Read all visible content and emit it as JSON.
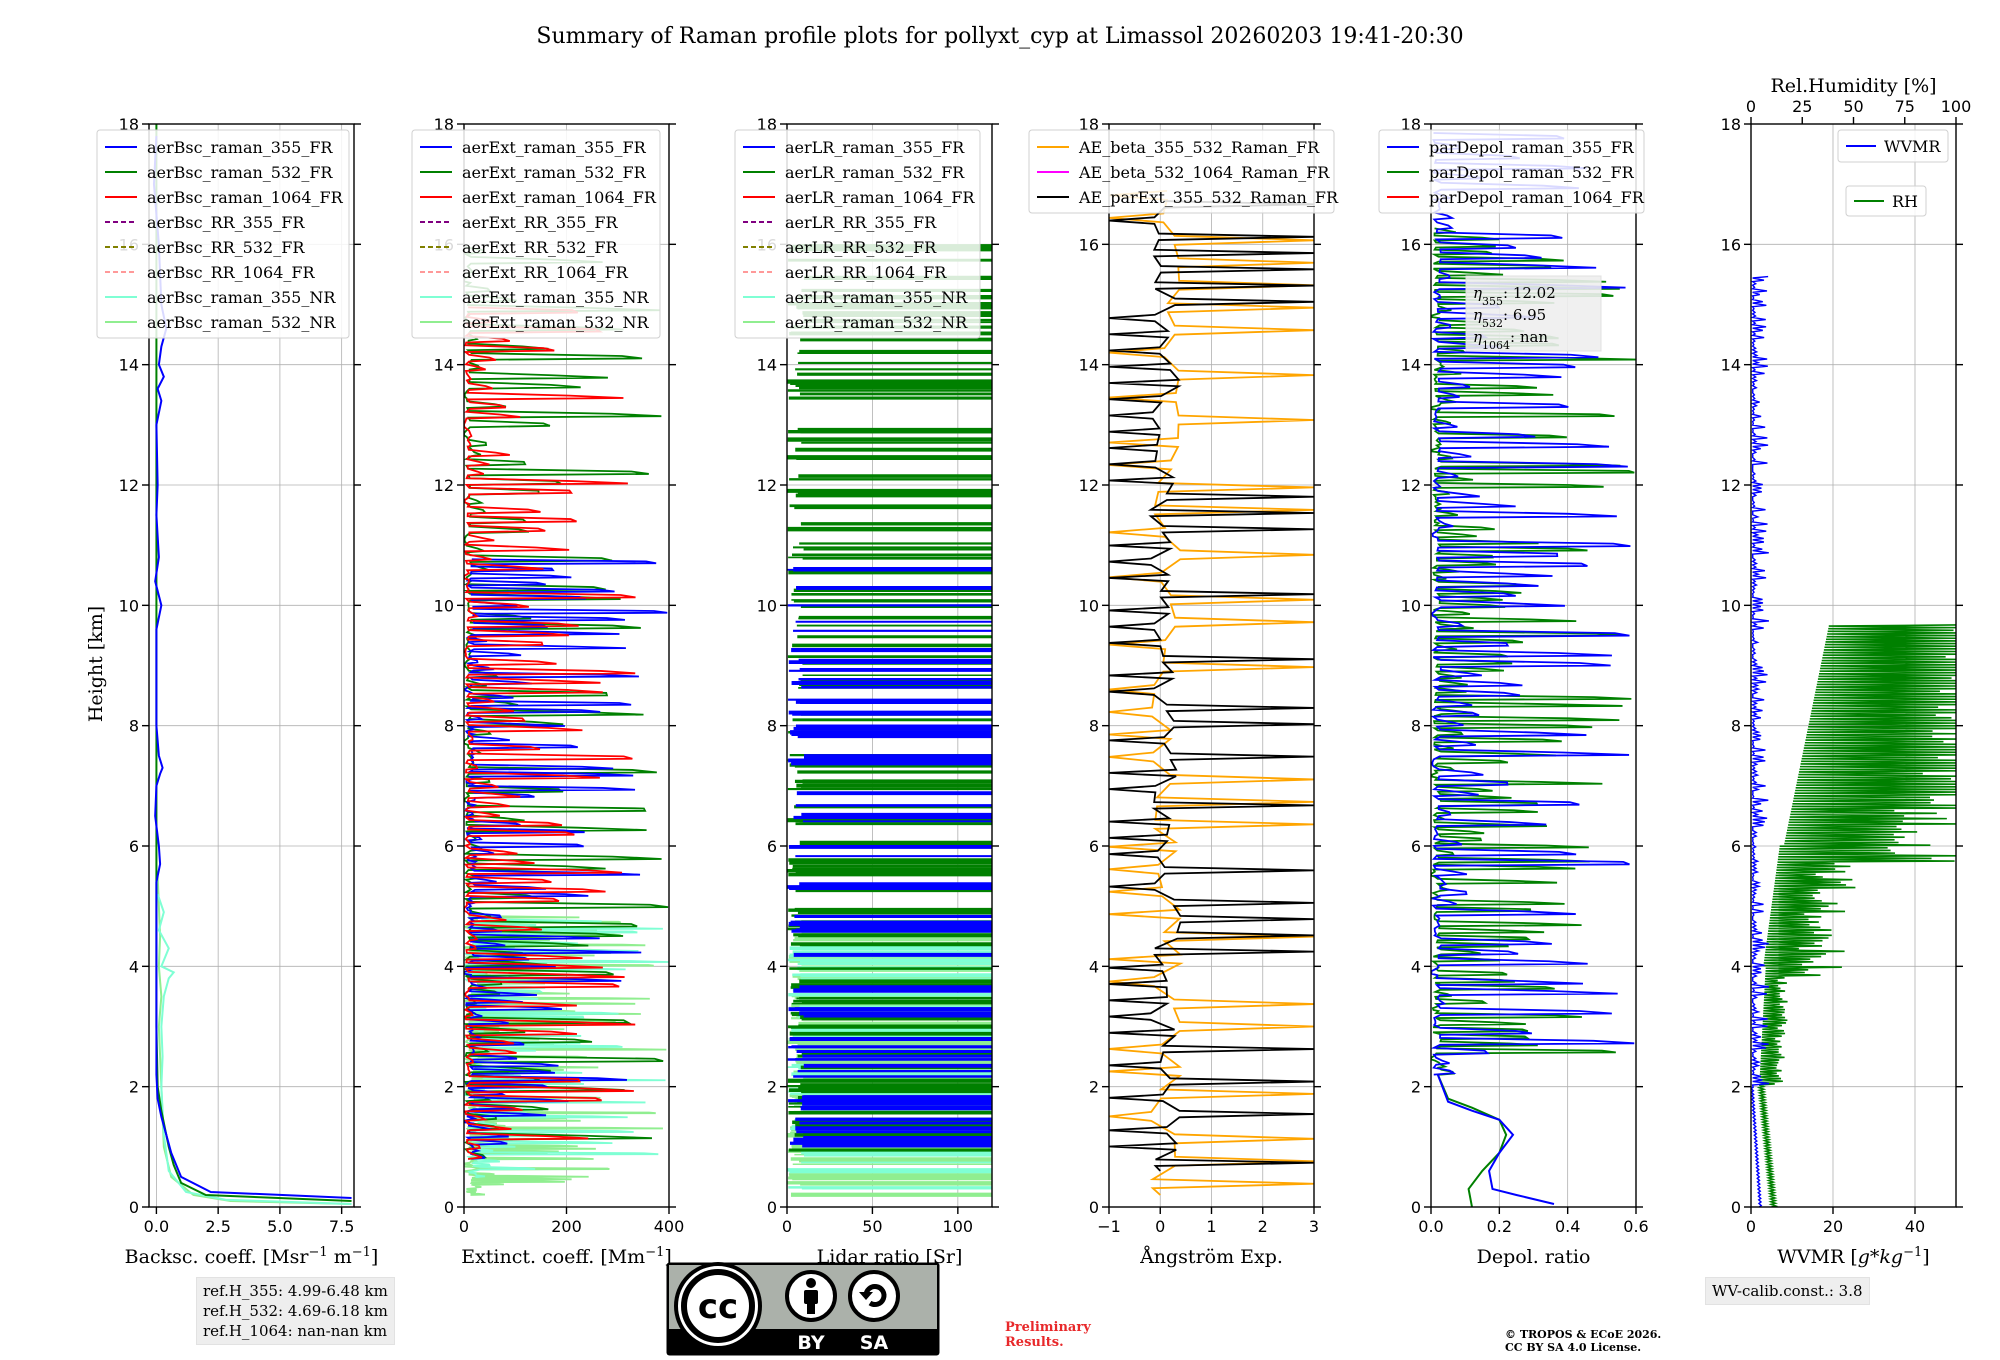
{
  "figure": {
    "title": "Summary of Raman profile plots for pollyxt_cyp at Limassol 20260203 19:41-20:30",
    "ylabel": "Height [km]",
    "info": {
      "ref_lines": [
        "ref.H_355: 4.99-6.48 km",
        "ref.H_532: 4.69-6.18 km",
        "ref.H_1064: nan-nan km"
      ],
      "preliminary": [
        "Preliminary",
        "Results."
      ],
      "copyright": [
        "© TROPOS & ECoE 2026.",
        "CC BY SA 4.0 License."
      ],
      "wv_calib": "WV-calib.const.: 3.8"
    },
    "badge": {
      "left": "BY",
      "right": "SA",
      "logo": "cc-icon",
      "person": "person-icon",
      "sa": "share-alike-icon"
    }
  },
  "chart_data": [
    {
      "id": "bsc",
      "type": "line",
      "xlabel": "Backsc. coeff. [Msr$^{-1}$ m$^{-1}$]",
      "xlabel_display": [
        "Backsc. coeff. [Msr",
        "−1",
        " m",
        "−1",
        "]"
      ],
      "xlim": [
        -0.3,
        8.0
      ],
      "ylim": [
        0,
        18
      ],
      "xticks": [
        0.0,
        2.5,
        5.0,
        7.5
      ],
      "xticklabels": [
        "0.0",
        "2.5",
        "5.0",
        "7.5"
      ],
      "yticks": [
        0,
        2,
        4,
        6,
        8,
        10,
        12,
        14,
        16,
        18
      ],
      "legend": [
        {
          "label": "aerBsc_raman_355_FR",
          "color": "#0000ff",
          "dash": false
        },
        {
          "label": "aerBsc_raman_532_FR",
          "color": "#008000",
          "dash": false
        },
        {
          "label": "aerBsc_raman_1064_FR",
          "color": "#ff0000",
          "dash": false
        },
        {
          "label": "aerBsc_RR_355_FR",
          "color": "#800080",
          "dash": true
        },
        {
          "label": "aerBsc_RR_532_FR",
          "color": "#808000",
          "dash": true
        },
        {
          "label": "aerBsc_RR_1064_FR",
          "color": "#ff9999",
          "dash": true
        },
        {
          "label": "aerBsc_raman_355_NR",
          "color": "#7fffd4",
          "dash": false
        },
        {
          "label": "aerBsc_raman_532_NR",
          "color": "#90ee90",
          "dash": false
        }
      ],
      "series": [
        {
          "name": "aerBsc_raman_532_NR",
          "color": "#90ee90",
          "mode": "line",
          "points": [
            [
              7.9,
              0.05
            ],
            [
              3.0,
              0.1
            ],
            [
              1.5,
              0.2
            ],
            [
              0.6,
              0.5
            ],
            [
              0.3,
              1.0
            ],
            [
              0.25,
              1.5
            ],
            [
              0.2,
              2.0
            ],
            [
              0.15,
              2.5
            ],
            [
              0.1,
              3.0
            ],
            [
              0.2,
              3.5
            ],
            [
              0.1,
              4.0
            ],
            [
              0.15,
              4.5
            ],
            [
              0.1,
              5.0
            ],
            [
              0.05,
              5.5
            ]
          ]
        },
        {
          "name": "aerBsc_raman_355_NR",
          "color": "#7fffd4",
          "mode": "line",
          "points": [
            [
              7.9,
              0.05
            ],
            [
              2.8,
              0.12
            ],
            [
              1.2,
              0.25
            ],
            [
              0.5,
              0.6
            ],
            [
              0.3,
              1.2
            ],
            [
              0.2,
              2.0
            ],
            [
              0.25,
              2.5
            ],
            [
              0.2,
              3.0
            ],
            [
              0.3,
              3.5
            ],
            [
              0.5,
              3.8
            ],
            [
              0.7,
              3.9
            ],
            [
              0.2,
              4.0
            ],
            [
              0.5,
              4.3
            ],
            [
              0.1,
              4.6
            ],
            [
              0.3,
              4.9
            ],
            [
              0.05,
              5.2
            ]
          ]
        },
        {
          "name": "aerBsc_raman_532_FR",
          "color": "#008000",
          "mode": "line",
          "points": [
            [
              7.9,
              0.1
            ],
            [
              2.0,
              0.2
            ],
            [
              1.0,
              0.4
            ],
            [
              0.7,
              0.7
            ],
            [
              0.5,
              1.0
            ],
            [
              0.35,
              1.3
            ],
            [
              0.2,
              1.6
            ],
            [
              0.05,
              2.0
            ],
            [
              0.0,
              3.0
            ],
            [
              0.0,
              6.0
            ],
            [
              0.0,
              18.0
            ]
          ]
        },
        {
          "name": "aerBsc_raman_355_FR",
          "color": "#0000ff",
          "mode": "line",
          "points": [
            [
              7.9,
              0.15
            ],
            [
              2.2,
              0.25
            ],
            [
              1.0,
              0.5
            ],
            [
              0.6,
              0.9
            ],
            [
              0.4,
              1.2
            ],
            [
              0.2,
              1.5
            ],
            [
              0.05,
              1.8
            ],
            [
              0.0,
              2.2
            ],
            [
              0.0,
              5.4
            ],
            [
              0.15,
              5.7
            ],
            [
              0.1,
              6.0
            ],
            [
              -0.05,
              6.5
            ],
            [
              0.0,
              7.0
            ],
            [
              0.15,
              7.2
            ],
            [
              0.25,
              7.3
            ],
            [
              0.1,
              7.5
            ],
            [
              0.0,
              8.0
            ],
            [
              0.0,
              9.6
            ],
            [
              0.2,
              10.0
            ],
            [
              -0.05,
              10.4
            ],
            [
              0.1,
              10.8
            ],
            [
              0.0,
              11.5
            ],
            [
              0.05,
              12.0
            ],
            [
              0.0,
              13.0
            ],
            [
              0.2,
              13.4
            ],
            [
              0.05,
              13.6
            ],
            [
              0.3,
              13.8
            ],
            [
              0.1,
              14.0
            ],
            [
              0.2,
              14.3
            ],
            [
              0.4,
              14.6
            ],
            [
              0.2,
              15.0
            ],
            [
              0.1,
              16.0
            ],
            [
              -0.1,
              17.0
            ],
            [
              0.0,
              17.8
            ]
          ]
        }
      ]
    },
    {
      "id": "ext",
      "type": "line",
      "xlabel": "Extinct. coeff. [Mm$^{-1}$]",
      "xlabel_display": [
        "Extinct. coeff. [Mm",
        "−1",
        "]"
      ],
      "xlim": [
        0,
        400
      ],
      "ylim": [
        0,
        18
      ],
      "xticks": [
        0,
        200,
        400
      ],
      "xticklabels": [
        "0",
        "200",
        "400"
      ],
      "yticks": [
        0,
        2,
        4,
        6,
        8,
        10,
        12,
        14,
        16,
        18
      ],
      "legend": [
        {
          "label": "aerExt_raman_355_FR",
          "color": "#0000ff",
          "dash": false
        },
        {
          "label": "aerExt_raman_532_FR",
          "color": "#008000",
          "dash": false
        },
        {
          "label": "aerExt_raman_1064_FR",
          "color": "#ff0000",
          "dash": false
        },
        {
          "label": "aerExt_RR_355_FR",
          "color": "#800080",
          "dash": true
        },
        {
          "label": "aerExt_RR_532_FR",
          "color": "#808000",
          "dash": true
        },
        {
          "label": "aerExt_RR_1064_FR",
          "color": "#ff9999",
          "dash": true
        },
        {
          "label": "aerExt_raman_355_NR",
          "color": "#7fffd4",
          "dash": false
        },
        {
          "label": "aerExt_raman_532_NR",
          "color": "#90ee90",
          "dash": false
        }
      ],
      "series": [
        {
          "name": "aerExt_raman_532_NR",
          "color": "#90ee90",
          "mode": "spikes",
          "seed": 11,
          "ymin": 0.2,
          "ymax": 4.85,
          "n": 110,
          "xmin": 0,
          "xmax": 400,
          "base": 20
        },
        {
          "name": "aerExt_raman_355_NR",
          "color": "#7fffd4",
          "mode": "spikes",
          "seed": 12,
          "ymin": 0.5,
          "ymax": 4.8,
          "n": 70,
          "xmin": 0,
          "xmax": 400,
          "base": 30
        },
        {
          "name": "aerExt_raman_532_FR",
          "color": "#008000",
          "mode": "spikes",
          "seed": 13,
          "ymin": 0.8,
          "ymax": 16.0,
          "n": 95,
          "xmin": 0,
          "xmax": 400,
          "base": 10
        },
        {
          "name": "aerExt_raman_355_FR",
          "color": "#0000ff",
          "mode": "spikes",
          "seed": 14,
          "ymin": 0.8,
          "ymax": 10.8,
          "n": 85,
          "xmin": 0,
          "xmax": 400,
          "base": 15
        },
        {
          "name": "aerExt_raman_1064_FR",
          "color": "#ff0000",
          "mode": "spikes",
          "seed": 15,
          "ymin": 0.8,
          "ymax": 15.0,
          "n": 90,
          "xmin": 0,
          "xmax": 340,
          "base": 8
        }
      ]
    },
    {
      "id": "lr",
      "type": "line",
      "xlabel": "Lidar ratio [Sr]",
      "xlabel_display": [
        "Lidar ratio [Sr]"
      ],
      "xlim": [
        0,
        120
      ],
      "ylim": [
        0,
        18
      ],
      "xticks": [
        0,
        50,
        100
      ],
      "xticklabels": [
        "0",
        "50",
        "100"
      ],
      "yticks": [
        0,
        2,
        4,
        6,
        8,
        10,
        12,
        14,
        16,
        18
      ],
      "legend": [
        {
          "label": "aerLR_raman_355_FR",
          "color": "#0000ff",
          "dash": false
        },
        {
          "label": "aerLR_raman_532_FR",
          "color": "#008000",
          "dash": false
        },
        {
          "label": "aerLR_raman_1064_FR",
          "color": "#ff0000",
          "dash": false
        },
        {
          "label": "aerLR_RR_355_FR",
          "color": "#800080",
          "dash": true
        },
        {
          "label": "aerLR_RR_532_FR",
          "color": "#808000",
          "dash": true
        },
        {
          "label": "aerLR_RR_1064_FR",
          "color": "#ff9999",
          "dash": true
        },
        {
          "label": "aerLR_raman_355_NR",
          "color": "#7fffd4",
          "dash": false
        },
        {
          "label": "aerLR_raman_532_NR",
          "color": "#90ee90",
          "dash": false
        }
      ],
      "series": [
        {
          "name": "aerLR_raman_532_NR",
          "color": "#90ee90",
          "mode": "bars",
          "seed": 21,
          "ymin": 0.2,
          "ymax": 4.8,
          "n": 90,
          "xmin": 0,
          "xmax": 120
        },
        {
          "name": "aerLR_raman_355_NR",
          "color": "#7fffd4",
          "mode": "bars",
          "seed": 22,
          "ymin": 0.3,
          "ymax": 4.5,
          "n": 40,
          "xmin": 0,
          "xmax": 120
        },
        {
          "name": "aerLR_raman_532_FR",
          "color": "#008000",
          "mode": "bars",
          "seed": 23,
          "ymin": 0.8,
          "ymax": 16.0,
          "n": 170,
          "xmin": 0,
          "xmax": 120
        },
        {
          "name": "aerLR_raman_355_FR",
          "color": "#0000ff",
          "mode": "bars",
          "seed": 24,
          "ymin": 0.8,
          "ymax": 11.0,
          "n": 80,
          "xmin": 0,
          "xmax": 120
        }
      ]
    },
    {
      "id": "ae",
      "type": "line",
      "xlabel": "Ångström Exp.",
      "xlabel_display": [
        "Ångström Exp."
      ],
      "xlim": [
        -1,
        3
      ],
      "ylim": [
        0,
        18
      ],
      "xticks": [
        -1,
        0,
        1,
        2,
        3
      ],
      "xticklabels": [
        "−1",
        "0",
        "1",
        "2",
        "3"
      ],
      "yticks": [
        0,
        2,
        4,
        6,
        8,
        10,
        12,
        14,
        16,
        18
      ],
      "legend": [
        {
          "label": "AE_beta_355_532_Raman_FR",
          "color": "#ffa500",
          "dash": false
        },
        {
          "label": "AE_beta_532_1064_Raman_FR",
          "color": "#ff00ff",
          "dash": false
        },
        {
          "label": "AE_parExt_355_532_Raman_FR",
          "color": "#000000",
          "dash": false
        }
      ],
      "series": [
        {
          "name": "AE_beta_355_532_Raman_FR",
          "color": "#ffa500",
          "mode": "osc",
          "seed": 31,
          "ymin": 0.2,
          "ymax": 17.0,
          "n": 45,
          "xmin": -1,
          "xmax": 3
        },
        {
          "name": "AE_parExt_355_532_Raman_FR",
          "color": "#000000",
          "mode": "osc",
          "seed": 32,
          "ymin": 0.6,
          "ymax": 16.8,
          "n": 60,
          "xmin": -1,
          "xmax": 3
        }
      ]
    },
    {
      "id": "depol",
      "type": "line",
      "xlabel": "Depol. ratio",
      "xlabel_display": [
        "Depol. ratio"
      ],
      "xlim": [
        0,
        0.6
      ],
      "ylim": [
        0,
        18
      ],
      "xticks": [
        0.0,
        0.2,
        0.4,
        0.6
      ],
      "xticklabels": [
        "0.0",
        "0.2",
        "0.4",
        "0.6"
      ],
      "yticks": [
        0,
        2,
        4,
        6,
        8,
        10,
        12,
        14,
        16,
        18
      ],
      "legend": [
        {
          "label": "parDepol_raman_355_FR",
          "color": "#0000ff",
          "dash": false
        },
        {
          "label": "parDepol_raman_532_FR",
          "color": "#008000",
          "dash": false
        },
        {
          "label": "parDepol_raman_1064_FR",
          "color": "#ff0000",
          "dash": false
        }
      ],
      "annotation": {
        "lines": [
          {
            "sym": "η",
            "sub": "355",
            "val": ": 12.02"
          },
          {
            "sym": "η",
            "sub": "532",
            "val": ": 6.95"
          },
          {
            "sym": "η",
            "sub": "1064",
            "val": ": nan"
          }
        ]
      },
      "series": [
        {
          "name": "parDepol_raman_532_FR",
          "color": "#008000",
          "mode": "spikes",
          "seed": 41,
          "ymin": 2.2,
          "ymax": 16.3,
          "n": 120,
          "xmin": 0,
          "xmax": 0.6,
          "base": 0.02
        },
        {
          "name": "parDepol_raman_355_FR",
          "color": "#0000ff",
          "mode": "spikes",
          "seed": 42,
          "ymin": 2.2,
          "ymax": 17.9,
          "n": 95,
          "xmin": 0,
          "xmax": 0.6,
          "base": 0.02
        },
        {
          "name": "parDepol_532_low",
          "color": "#008000",
          "mode": "line",
          "points": [
            [
              0.12,
              0.0
            ],
            [
              0.11,
              0.3
            ],
            [
              0.15,
              0.6
            ],
            [
              0.2,
              0.9
            ],
            [
              0.22,
              1.2
            ],
            [
              0.2,
              1.45
            ],
            [
              0.12,
              1.65
            ],
            [
              0.05,
              1.8
            ],
            [
              0.02,
              2.2
            ]
          ]
        },
        {
          "name": "parDepol_355_low",
          "color": "#0000ff",
          "mode": "line",
          "points": [
            [
              0.36,
              0.05
            ],
            [
              0.25,
              0.2
            ],
            [
              0.18,
              0.3
            ],
            [
              0.17,
              0.6
            ],
            [
              0.2,
              0.9
            ],
            [
              0.24,
              1.2
            ],
            [
              0.2,
              1.45
            ],
            [
              0.12,
              1.6
            ],
            [
              0.05,
              1.75
            ],
            [
              0.02,
              2.2
            ]
          ]
        }
      ]
    },
    {
      "id": "wv",
      "type": "line",
      "xlabel": "WVMR [$g*kg^{-1}$]",
      "xlabel_display": [
        "WVMR [",
        "g",
        "*",
        "kg",
        "−1",
        "]"
      ],
      "xlim": [
        0,
        50
      ],
      "ylim": [
        0,
        18
      ],
      "xticks": [
        0,
        20,
        40
      ],
      "xticklabels": [
        "0",
        "20",
        "40"
      ],
      "yticks": [
        0,
        2,
        4,
        6,
        8,
        10,
        12,
        14,
        16,
        18
      ],
      "top_axis": {
        "label": "Rel.Humidity [%]",
        "xlim": [
          0,
          100
        ],
        "xticks": [
          0,
          25,
          50,
          75,
          100
        ],
        "xticklabels": [
          "0",
          "25",
          "50",
          "75",
          "100"
        ]
      },
      "legend": [
        {
          "label": "WVMR",
          "color": "#0000ff",
          "dash": false
        },
        {
          "label": "RH",
          "color": "#008000",
          "dash": false
        }
      ],
      "series": [
        {
          "name": "RH",
          "color": "#008000",
          "mode": "rh",
          "seed": 51,
          "ymin": 0.0,
          "ymax": 9.7,
          "xmin": 0,
          "xmax": 50
        },
        {
          "name": "WVMR",
          "color": "#0000ff",
          "mode": "wvmr",
          "seed": 52,
          "ymin": 0.0,
          "ymax": 15.5,
          "xmin": 0,
          "xmax": 50
        }
      ]
    }
  ]
}
